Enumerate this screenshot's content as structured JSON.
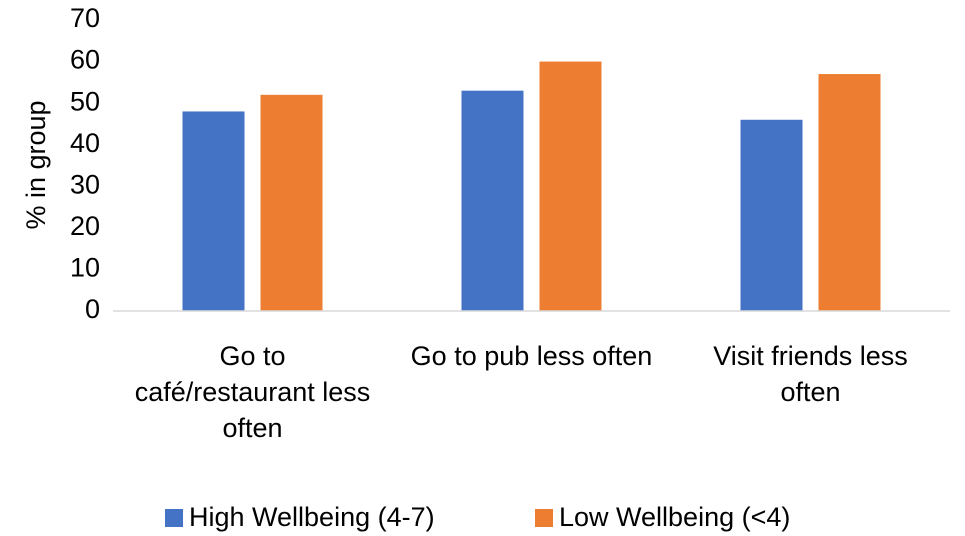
{
  "chart_data": {
    "type": "bar",
    "y_label": "% in group",
    "categories": [
      "Go to café/restaurant less often",
      "Go to pub less often",
      "Visit friends less often"
    ],
    "series": [
      {
        "name": "High Wellbeing (4-7)",
        "color": "#4472c4",
        "values": [
          48,
          53,
          46
        ]
      },
      {
        "name": "Low Wellbeing (<4)",
        "color": "#ed7d31",
        "values": [
          52,
          60,
          57
        ]
      }
    ],
    "ylim": [
      0,
      70
    ],
    "yticks": [
      0,
      10,
      20,
      30,
      40,
      50,
      60,
      70
    ],
    "grid": false,
    "legend": "bottom"
  }
}
